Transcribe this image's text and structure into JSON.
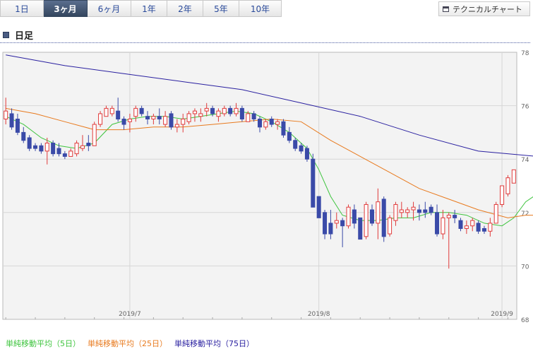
{
  "tabs": [
    {
      "label": "1日",
      "active": false
    },
    {
      "label": "3ヶ月",
      "active": true
    },
    {
      "label": "6ヶ月",
      "active": false
    },
    {
      "label": "1年",
      "active": false
    },
    {
      "label": "2年",
      "active": false
    },
    {
      "label": "5年",
      "active": false
    },
    {
      "label": "10年",
      "active": false
    }
  ],
  "technical_button": {
    "label": "テクニカルチャート",
    "icon": "window-icon"
  },
  "section": {
    "title": "日足"
  },
  "colors": {
    "up": "#e03a3a",
    "down": "#3a4aa8",
    "ma5": "#3ec43e",
    "ma25": "#e87a1e",
    "ma75": "#2a20a0"
  },
  "chart_data": {
    "type": "candlestick",
    "title": "",
    "ylim": [
      68,
      78
    ],
    "yticks": [
      "68",
      "70",
      "72",
      "74",
      "76",
      "78"
    ],
    "xticks": [
      {
        "label": "2019/7",
        "index": 21
      },
      {
        "label": "2019/8",
        "index": 53
      },
      {
        "label": "2019/9",
        "index": 84
      }
    ],
    "grid": true,
    "candles": [
      {
        "o": 75.5,
        "h": 76.3,
        "l": 75.3,
        "c": 75.8
      },
      {
        "o": 75.7,
        "h": 75.9,
        "l": 75.1,
        "c": 75.2
      },
      {
        "o": 75.5,
        "h": 75.7,
        "l": 74.9,
        "c": 75.0
      },
      {
        "o": 75.0,
        "h": 75.2,
        "l": 74.6,
        "c": 74.7
      },
      {
        "o": 74.8,
        "h": 74.9,
        "l": 74.3,
        "c": 74.4
      },
      {
        "o": 74.5,
        "h": 74.6,
        "l": 74.3,
        "c": 74.4
      },
      {
        "o": 74.5,
        "h": 74.6,
        "l": 74.2,
        "c": 74.3
      },
      {
        "o": 74.3,
        "h": 74.8,
        "l": 73.8,
        "c": 74.6
      },
      {
        "o": 74.6,
        "h": 74.7,
        "l": 74.1,
        "c": 74.2
      },
      {
        "o": 74.4,
        "h": 74.6,
        "l": 74.1,
        "c": 74.2
      },
      {
        "o": 74.2,
        "h": 74.3,
        "l": 74.0,
        "c": 74.1
      },
      {
        "o": 74.1,
        "h": 74.4,
        "l": 74.1,
        "c": 74.3
      },
      {
        "o": 74.2,
        "h": 74.7,
        "l": 74.1,
        "c": 74.6
      },
      {
        "o": 74.4,
        "h": 74.9,
        "l": 74.3,
        "c": 74.5
      },
      {
        "o": 74.6,
        "h": 74.9,
        "l": 74.3,
        "c": 74.5
      },
      {
        "o": 74.5,
        "h": 75.4,
        "l": 74.5,
        "c": 75.3
      },
      {
        "o": 75.3,
        "h": 75.8,
        "l": 75.2,
        "c": 75.7
      },
      {
        "o": 75.6,
        "h": 76.0,
        "l": 75.6,
        "c": 75.9
      },
      {
        "o": 75.7,
        "h": 76.0,
        "l": 75.6,
        "c": 75.9
      },
      {
        "o": 75.8,
        "h": 76.3,
        "l": 75.4,
        "c": 75.5
      },
      {
        "o": 75.5,
        "h": 75.6,
        "l": 75.1,
        "c": 75.3
      },
      {
        "o": 75.4,
        "h": 75.7,
        "l": 75.0,
        "c": 75.5
      },
      {
        "o": 75.6,
        "h": 76.0,
        "l": 75.4,
        "c": 75.9
      },
      {
        "o": 75.9,
        "h": 76.0,
        "l": 75.6,
        "c": 75.7
      },
      {
        "o": 75.6,
        "h": 75.8,
        "l": 75.3,
        "c": 75.5
      },
      {
        "o": 75.5,
        "h": 75.7,
        "l": 75.3,
        "c": 75.6
      },
      {
        "o": 75.6,
        "h": 75.9,
        "l": 75.3,
        "c": 75.5
      },
      {
        "o": 75.3,
        "h": 75.8,
        "l": 75.2,
        "c": 75.6
      },
      {
        "o": 75.7,
        "h": 75.8,
        "l": 75.1,
        "c": 75.2
      },
      {
        "o": 75.2,
        "h": 75.5,
        "l": 75.0,
        "c": 75.3
      },
      {
        "o": 75.3,
        "h": 75.7,
        "l": 75.0,
        "c": 75.5
      },
      {
        "o": 75.4,
        "h": 75.8,
        "l": 75.3,
        "c": 75.7
      },
      {
        "o": 75.7,
        "h": 75.9,
        "l": 75.4,
        "c": 75.8
      },
      {
        "o": 75.6,
        "h": 75.9,
        "l": 75.4,
        "c": 75.7
      },
      {
        "o": 75.8,
        "h": 76.1,
        "l": 75.6,
        "c": 75.9
      },
      {
        "o": 75.9,
        "h": 76.0,
        "l": 75.6,
        "c": 75.7
      },
      {
        "o": 75.6,
        "h": 75.9,
        "l": 75.4,
        "c": 75.8
      },
      {
        "o": 75.7,
        "h": 76.0,
        "l": 75.6,
        "c": 75.9
      },
      {
        "o": 75.9,
        "h": 76.0,
        "l": 75.6,
        "c": 75.7
      },
      {
        "o": 75.7,
        "h": 76.1,
        "l": 75.6,
        "c": 75.9
      },
      {
        "o": 75.9,
        "h": 76.0,
        "l": 75.4,
        "c": 75.5
      },
      {
        "o": 75.4,
        "h": 75.8,
        "l": 75.4,
        "c": 75.7
      },
      {
        "o": 75.7,
        "h": 75.8,
        "l": 75.4,
        "c": 75.5
      },
      {
        "o": 75.5,
        "h": 75.6,
        "l": 75.0,
        "c": 75.2
      },
      {
        "o": 75.2,
        "h": 75.5,
        "l": 75.1,
        "c": 75.4
      },
      {
        "o": 75.5,
        "h": 75.6,
        "l": 75.2,
        "c": 75.3
      },
      {
        "o": 75.3,
        "h": 75.5,
        "l": 75.1,
        "c": 75.4
      },
      {
        "o": 75.4,
        "h": 75.5,
        "l": 74.8,
        "c": 74.9
      },
      {
        "o": 75.0,
        "h": 75.2,
        "l": 74.6,
        "c": 74.7
      },
      {
        "o": 74.7,
        "h": 74.8,
        "l": 74.3,
        "c": 74.4
      },
      {
        "o": 74.5,
        "h": 74.6,
        "l": 74.2,
        "c": 74.3
      },
      {
        "o": 74.4,
        "h": 74.5,
        "l": 73.9,
        "c": 74.0
      },
      {
        "o": 74.0,
        "h": 74.2,
        "l": 72.2,
        "c": 72.2
      },
      {
        "o": 72.6,
        "h": 72.6,
        "l": 71.8,
        "c": 71.8
      },
      {
        "o": 72.0,
        "h": 72.1,
        "l": 71.0,
        "c": 71.2
      },
      {
        "o": 71.6,
        "h": 72.1,
        "l": 71.0,
        "c": 71.2
      },
      {
        "o": 71.6,
        "h": 72.0,
        "l": 71.4,
        "c": 71.7
      },
      {
        "o": 71.7,
        "h": 71.8,
        "l": 70.7,
        "c": 71.5
      },
      {
        "o": 71.5,
        "h": 72.3,
        "l": 71.4,
        "c": 72.2
      },
      {
        "o": 72.1,
        "h": 72.3,
        "l": 71.4,
        "c": 71.6
      },
      {
        "o": 71.8,
        "h": 71.8,
        "l": 71.0,
        "c": 71.0
      },
      {
        "o": 71.1,
        "h": 72.4,
        "l": 71.0,
        "c": 72.3
      },
      {
        "o": 72.1,
        "h": 72.3,
        "l": 71.5,
        "c": 71.6
      },
      {
        "o": 71.6,
        "h": 72.9,
        "l": 71.0,
        "c": 72.4
      },
      {
        "o": 72.5,
        "h": 72.6,
        "l": 70.9,
        "c": 71.1
      },
      {
        "o": 71.2,
        "h": 71.9,
        "l": 71.1,
        "c": 71.8
      },
      {
        "o": 71.7,
        "h": 72.4,
        "l": 71.5,
        "c": 72.3
      },
      {
        "o": 72.0,
        "h": 72.4,
        "l": 71.8,
        "c": 72.1
      },
      {
        "o": 72.0,
        "h": 72.2,
        "l": 71.8,
        "c": 72.1
      },
      {
        "o": 72.1,
        "h": 72.4,
        "l": 71.7,
        "c": 72.2
      },
      {
        "o": 72.1,
        "h": 72.3,
        "l": 71.7,
        "c": 72.0
      },
      {
        "o": 72.1,
        "h": 72.4,
        "l": 71.8,
        "c": 72.0
      },
      {
        "o": 72.2,
        "h": 72.3,
        "l": 71.9,
        "c": 72.0
      },
      {
        "o": 72.0,
        "h": 72.3,
        "l": 71.1,
        "c": 71.2
      },
      {
        "o": 71.2,
        "h": 72.1,
        "l": 71.0,
        "c": 71.8
      },
      {
        "o": 71.8,
        "h": 72.0,
        "l": 69.9,
        "c": 71.9
      },
      {
        "o": 71.9,
        "h": 72.1,
        "l": 71.6,
        "c": 71.8
      },
      {
        "o": 71.7,
        "h": 71.8,
        "l": 71.3,
        "c": 71.4
      },
      {
        "o": 71.4,
        "h": 71.7,
        "l": 71.2,
        "c": 71.5
      },
      {
        "o": 71.5,
        "h": 71.8,
        "l": 71.3,
        "c": 71.7
      },
      {
        "o": 71.6,
        "h": 71.7,
        "l": 71.2,
        "c": 71.3
      },
      {
        "o": 71.4,
        "h": 71.5,
        "l": 71.2,
        "c": 71.3
      },
      {
        "o": 71.3,
        "h": 71.8,
        "l": 71.1,
        "c": 71.6
      },
      {
        "o": 71.6,
        "h": 72.4,
        "l": 71.6,
        "c": 72.3
      },
      {
        "o": 72.3,
        "h": 73.0,
        "l": 72.2,
        "c": 73.0
      },
      {
        "o": 72.7,
        "h": 73.4,
        "l": 72.6,
        "c": 73.3
      },
      {
        "o": 73.1,
        "h": 73.6,
        "l": 73.1,
        "c": 73.6
      }
    ],
    "series": [
      {
        "name": "単純移動平均（5日）",
        "color": "#3ec43e",
        "points": [
          [
            0,
            75.6
          ],
          [
            3,
            75.3
          ],
          [
            6,
            74.8
          ],
          [
            9,
            74.5
          ],
          [
            12,
            74.4
          ],
          [
            15,
            74.6
          ],
          [
            18,
            75.3
          ],
          [
            21,
            75.5
          ],
          [
            24,
            75.6
          ],
          [
            27,
            75.6
          ],
          [
            30,
            75.5
          ],
          [
            33,
            75.6
          ],
          [
            36,
            75.7
          ],
          [
            39,
            75.8
          ],
          [
            42,
            75.7
          ],
          [
            45,
            75.4
          ],
          [
            48,
            75.0
          ],
          [
            51,
            74.4
          ],
          [
            53,
            73.6
          ],
          [
            55,
            72.6
          ],
          [
            57,
            71.9
          ],
          [
            60,
            71.7
          ],
          [
            63,
            71.7
          ],
          [
            66,
            71.8
          ],
          [
            69,
            71.8
          ],
          [
            72,
            72.0
          ],
          [
            75,
            72.0
          ],
          [
            78,
            71.9
          ],
          [
            81,
            71.6
          ],
          [
            84,
            71.5
          ],
          [
            86,
            71.8
          ],
          [
            88,
            72.4
          ],
          [
            90,
            72.7
          ]
        ]
      },
      {
        "name": "単純移動平均（25日）",
        "color": "#e87a1e",
        "points": [
          [
            0,
            75.9
          ],
          [
            5,
            75.7
          ],
          [
            10,
            75.4
          ],
          [
            15,
            75.1
          ],
          [
            20,
            75.1
          ],
          [
            25,
            75.2
          ],
          [
            30,
            75.2
          ],
          [
            35,
            75.3
          ],
          [
            40,
            75.4
          ],
          [
            45,
            75.5
          ],
          [
            50,
            75.4
          ],
          [
            55,
            74.7
          ],
          [
            60,
            74.1
          ],
          [
            65,
            73.5
          ],
          [
            70,
            72.9
          ],
          [
            75,
            72.5
          ],
          [
            80,
            72.1
          ],
          [
            85,
            71.8
          ],
          [
            88,
            71.9
          ],
          [
            90,
            71.9
          ]
        ]
      },
      {
        "name": "単純移動平均（75日）",
        "color": "#2a20a0",
        "points": [
          [
            0,
            77.9
          ],
          [
            10,
            77.5
          ],
          [
            20,
            77.2
          ],
          [
            30,
            76.9
          ],
          [
            40,
            76.6
          ],
          [
            50,
            76.1
          ],
          [
            60,
            75.6
          ],
          [
            70,
            74.9
          ],
          [
            80,
            74.3
          ],
          [
            90,
            74.1
          ]
        ]
      }
    ]
  }
}
